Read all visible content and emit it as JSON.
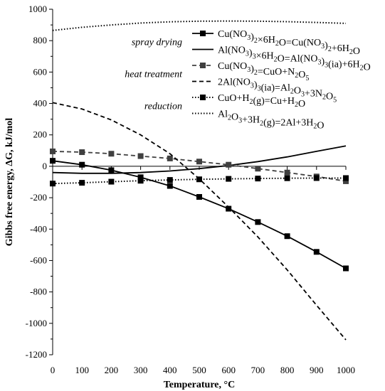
{
  "chart_data": {
    "type": "line",
    "title": "",
    "xlabel": "Temperature, °C",
    "ylabel": "Gibbs free energy, ΔG, kJ/mol",
    "xlim": [
      0,
      1000
    ],
    "ylim": [
      -1200,
      1000
    ],
    "x_ticks": [
      0,
      100,
      200,
      300,
      400,
      500,
      600,
      700,
      800,
      900,
      1000
    ],
    "y_ticks": [
      -1200,
      -1000,
      -800,
      -600,
      -400,
      -200,
      0,
      200,
      400,
      600,
      800,
      1000
    ],
    "grid": false,
    "legend_position": "top-right",
    "legend_groups": [
      {
        "label": "spray drying",
        "series_indices": [
          0,
          1
        ]
      },
      {
        "label": "heat treatment",
        "series_indices": [
          2,
          3
        ]
      },
      {
        "label": "reduction",
        "series_indices": [
          4,
          5
        ]
      }
    ],
    "series": [
      {
        "name": "Cu(NO3)2×6H2O=Cu(NO3)2+6H2O",
        "legend_parts": [
          [
            "Cu(NO",
            ""
          ],
          [
            "3",
            "sub"
          ],
          [
            ")",
            ""
          ],
          [
            "2",
            "sub"
          ],
          [
            "×6H",
            ""
          ],
          [
            "2",
            "sub"
          ],
          [
            "O=Cu(NO",
            ""
          ],
          [
            "3",
            "sub"
          ],
          [
            ")",
            ""
          ],
          [
            "2",
            "sub"
          ],
          [
            "+6H",
            ""
          ],
          [
            "2",
            "sub"
          ],
          [
            "O",
            ""
          ]
        ],
        "style": "solid",
        "marker": "square",
        "color": "#000000",
        "x": [
          0,
          100,
          200,
          300,
          400,
          500,
          600,
          700,
          800,
          900,
          1000
        ],
        "y": [
          35,
          10,
          -25,
          -70,
          -125,
          -195,
          -270,
          -355,
          -445,
          -545,
          -650
        ]
      },
      {
        "name": "Al(NO3)3×6H2O=Al(NO3)3(ia)+6H2O",
        "legend_parts": [
          [
            "Al(NO",
            ""
          ],
          [
            "3",
            "sub"
          ],
          [
            ")",
            ""
          ],
          [
            "3",
            "sub"
          ],
          [
            "×6H",
            ""
          ],
          [
            "2",
            "sub"
          ],
          [
            "O=Al(NO",
            ""
          ],
          [
            "3",
            "sub"
          ],
          [
            ")",
            ""
          ],
          [
            "3",
            "sub"
          ],
          [
            "(ia)+6H",
            ""
          ],
          [
            "2",
            "sub"
          ],
          [
            "O",
            ""
          ]
        ],
        "style": "solid",
        "marker": "none",
        "color": "#000000",
        "x": [
          0,
          100,
          200,
          300,
          400,
          500,
          600,
          700,
          800,
          900,
          1000
        ],
        "y": [
          -40,
          -45,
          -45,
          -40,
          -30,
          -15,
          5,
          30,
          60,
          95,
          130
        ]
      },
      {
        "name": "Cu(NO3)2=CuO+N2O5",
        "legend_parts": [
          [
            "Cu(NO",
            ""
          ],
          [
            "3",
            "sub"
          ],
          [
            ")",
            ""
          ],
          [
            "2",
            "sub"
          ],
          [
            "=CuO+N",
            ""
          ],
          [
            "2",
            "sub"
          ],
          [
            "O",
            ""
          ],
          [
            "5",
            "sub"
          ]
        ],
        "style": "dashed",
        "marker": "square",
        "color": "#404040",
        "x": [
          0,
          100,
          200,
          300,
          400,
          500,
          600,
          700,
          800,
          900,
          1000
        ],
        "y": [
          95,
          90,
          80,
          65,
          50,
          30,
          10,
          -15,
          -40,
          -65,
          -95
        ]
      },
      {
        "name": "2Al(NO3)3(ia)=Al2O3+3N2O5",
        "legend_parts": [
          [
            "2Al(NO",
            ""
          ],
          [
            "3",
            "sub"
          ],
          [
            ")",
            ""
          ],
          [
            "3",
            "sub"
          ],
          [
            "(ia)=Al",
            ""
          ],
          [
            "2",
            "sub"
          ],
          [
            "O",
            ""
          ],
          [
            "3",
            "sub"
          ],
          [
            "+3N",
            ""
          ],
          [
            "2",
            "sub"
          ],
          [
            "O",
            ""
          ],
          [
            "5",
            "sub"
          ]
        ],
        "style": "dashed",
        "marker": "none",
        "color": "#000000",
        "x": [
          0,
          100,
          200,
          300,
          400,
          500,
          600,
          700,
          800,
          900,
          1000
        ],
        "y": [
          405,
          365,
          295,
          200,
          80,
          -80,
          -260,
          -450,
          -660,
          -885,
          -1105
        ]
      },
      {
        "name": "CuO+H2(g)=Cu+H2O",
        "legend_parts": [
          [
            "CuO+H",
            ""
          ],
          [
            "2",
            "sub"
          ],
          [
            "(g)=Cu+H",
            ""
          ],
          [
            "2",
            "sub"
          ],
          [
            "O",
            ""
          ]
        ],
        "style": "dotted",
        "marker": "square",
        "color": "#000000",
        "x": [
          0,
          100,
          200,
          300,
          400,
          500,
          600,
          700,
          800,
          900,
          1000
        ],
        "y": [
          -110,
          -105,
          -98,
          -92,
          -87,
          -83,
          -80,
          -78,
          -76,
          -75,
          -75
        ]
      },
      {
        "name": "Al2O3+3H2(g)=2Al+3H2O",
        "legend_parts": [
          [
            "Al",
            ""
          ],
          [
            "2",
            "sub"
          ],
          [
            "O",
            ""
          ],
          [
            "3",
            "sub"
          ],
          [
            "+3H",
            ""
          ],
          [
            "2",
            "sub"
          ],
          [
            "(g)=2Al+3H",
            ""
          ],
          [
            "2",
            "sub"
          ],
          [
            "O",
            ""
          ]
        ],
        "style": "dotted",
        "marker": "none",
        "color": "#000000",
        "x": [
          0,
          100,
          200,
          300,
          400,
          500,
          600,
          700,
          800,
          900,
          1000
        ],
        "y": [
          865,
          885,
          900,
          912,
          920,
          924,
          925,
          924,
          921,
          916,
          910
        ]
      }
    ]
  }
}
